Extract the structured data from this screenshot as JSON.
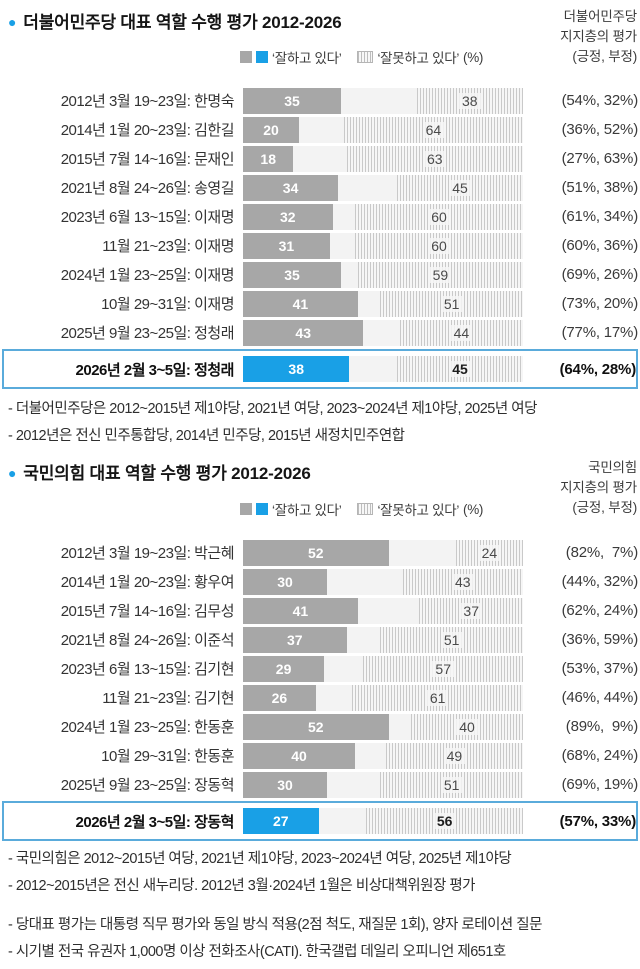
{
  "page": {
    "accent_blue": "#19a0e6",
    "bar_gray": "#a7a7a7",
    "highlight_border": "#5aabdb",
    "hatch_line": "#c9c9c9"
  },
  "chart_data": [
    {
      "type": "bar",
      "title": "더불어민주당 대표 역할 수행 평가 2012-2026",
      "side_header_lines": [
        "더불어민주당",
        "지지층의 평가",
        "(긍정, 부정)"
      ],
      "legend": {
        "positive_label": "‘잘하고 있다’",
        "negative_label": "‘잘못하고 있다’",
        "unit": "(%)"
      },
      "xlim": [
        0,
        100
      ],
      "rows": [
        {
          "label": "2012년 3월 19~23일: 한명숙",
          "positive": 35,
          "negative": 38,
          "supporters": "(54%, 32%)",
          "highlight": false
        },
        {
          "label": "2014년 1월 20~23일: 김한길",
          "positive": 20,
          "negative": 64,
          "supporters": "(36%, 52%)",
          "highlight": false
        },
        {
          "label": "2015년 7월 14~16일: 문재인",
          "positive": 18,
          "negative": 63,
          "supporters": "(27%, 63%)",
          "highlight": false
        },
        {
          "label": "2021년 8월 24~26일: 송영길",
          "positive": 34,
          "negative": 45,
          "supporters": "(51%, 38%)",
          "highlight": false
        },
        {
          "label": "2023년 6월 13~15일: 이재명",
          "positive": 32,
          "negative": 60,
          "supporters": "(61%, 34%)",
          "highlight": false
        },
        {
          "label": "11월 21~23일: 이재명",
          "positive": 31,
          "negative": 60,
          "supporters": "(60%, 36%)",
          "highlight": false
        },
        {
          "label": "2024년 1월 23~25일: 이재명",
          "positive": 35,
          "negative": 59,
          "supporters": "(69%, 26%)",
          "highlight": false
        },
        {
          "label": "10월 29~31일: 이재명",
          "positive": 41,
          "negative": 51,
          "supporters": "(73%, 20%)",
          "highlight": false
        },
        {
          "label": "2025년 9월 23~25일: 정청래",
          "positive": 43,
          "negative": 44,
          "supporters": "(77%, 17%)",
          "highlight": false
        },
        {
          "label": "2026년 2월 3~5일: 정청래",
          "positive": 38,
          "negative": 45,
          "supporters": "(64%, 28%)",
          "highlight": true
        }
      ],
      "footnotes": [
        "- 더불어민주당은 2012~2015년 제1야당, 2021년 여당, 2023~2024년 제1야당, 2025년 여당",
        "- 2012년은 전신 민주통합당, 2014년 민주당, 2015년 새정치민주연합"
      ]
    },
    {
      "type": "bar",
      "title": "국민의힘 대표 역할 수행 평가 2012-2026",
      "side_header_lines": [
        "국민의힘",
        "지지층의 평가",
        "(긍정, 부정)"
      ],
      "legend": {
        "positive_label": "‘잘하고 있다’",
        "negative_label": "‘잘못하고 있다’",
        "unit": "(%)"
      },
      "xlim": [
        0,
        100
      ],
      "rows": [
        {
          "label": "2012년 3월 19~23일: 박근혜",
          "positive": 52,
          "negative": 24,
          "supporters": "(82%,  7%)",
          "highlight": false
        },
        {
          "label": "2014년 1월 20~23일: 황우여",
          "positive": 30,
          "negative": 43,
          "supporters": "(44%, 32%)",
          "highlight": false
        },
        {
          "label": "2015년 7월 14~16일: 김무성",
          "positive": 41,
          "negative": 37,
          "supporters": "(62%, 24%)",
          "highlight": false
        },
        {
          "label": "2021년 8월 24~26일: 이준석",
          "positive": 37,
          "negative": 51,
          "supporters": "(36%, 59%)",
          "highlight": false
        },
        {
          "label": "2023년 6월 13~15일: 김기현",
          "positive": 29,
          "negative": 57,
          "supporters": "(53%, 37%)",
          "highlight": false
        },
        {
          "label": "11월 21~23일: 김기현",
          "positive": 26,
          "negative": 61,
          "supporters": "(46%, 44%)",
          "highlight": false
        },
        {
          "label": "2024년 1월 23~25일: 한동훈",
          "positive": 52,
          "negative": 40,
          "supporters": "(89%,  9%)",
          "highlight": false
        },
        {
          "label": "10월 29~31일: 한동훈",
          "positive": 40,
          "negative": 49,
          "supporters": "(68%, 24%)",
          "highlight": false
        },
        {
          "label": "2025년 9월 23~25일: 장동혁",
          "positive": 30,
          "negative": 51,
          "supporters": "(69%, 19%)",
          "highlight": false
        },
        {
          "label": "2026년 2월 3~5일: 장동혁",
          "positive": 27,
          "negative": 56,
          "supporters": "(57%, 33%)",
          "highlight": true
        }
      ],
      "footnotes": [
        "- 국민의힘은 2012~2015년 여당, 2021년 제1야당, 2023~2024년 여당, 2025년 제1야당",
        "- 2012~2015년은 전신 새누리당. 2012년 3월·2024년 1월은 비상대책위원장 평가"
      ]
    }
  ],
  "bottom_footnotes": [
    "- 당대표 평가는 대통령 직무 평가와 동일 방식 적용(2점 척도, 재질문 1회), 양자 로테이션 질문",
    "- 시기별 전국 유권자 1,000명 이상 전화조사(CATI). 한국갤럽 데일리 오피니언 제651호"
  ]
}
